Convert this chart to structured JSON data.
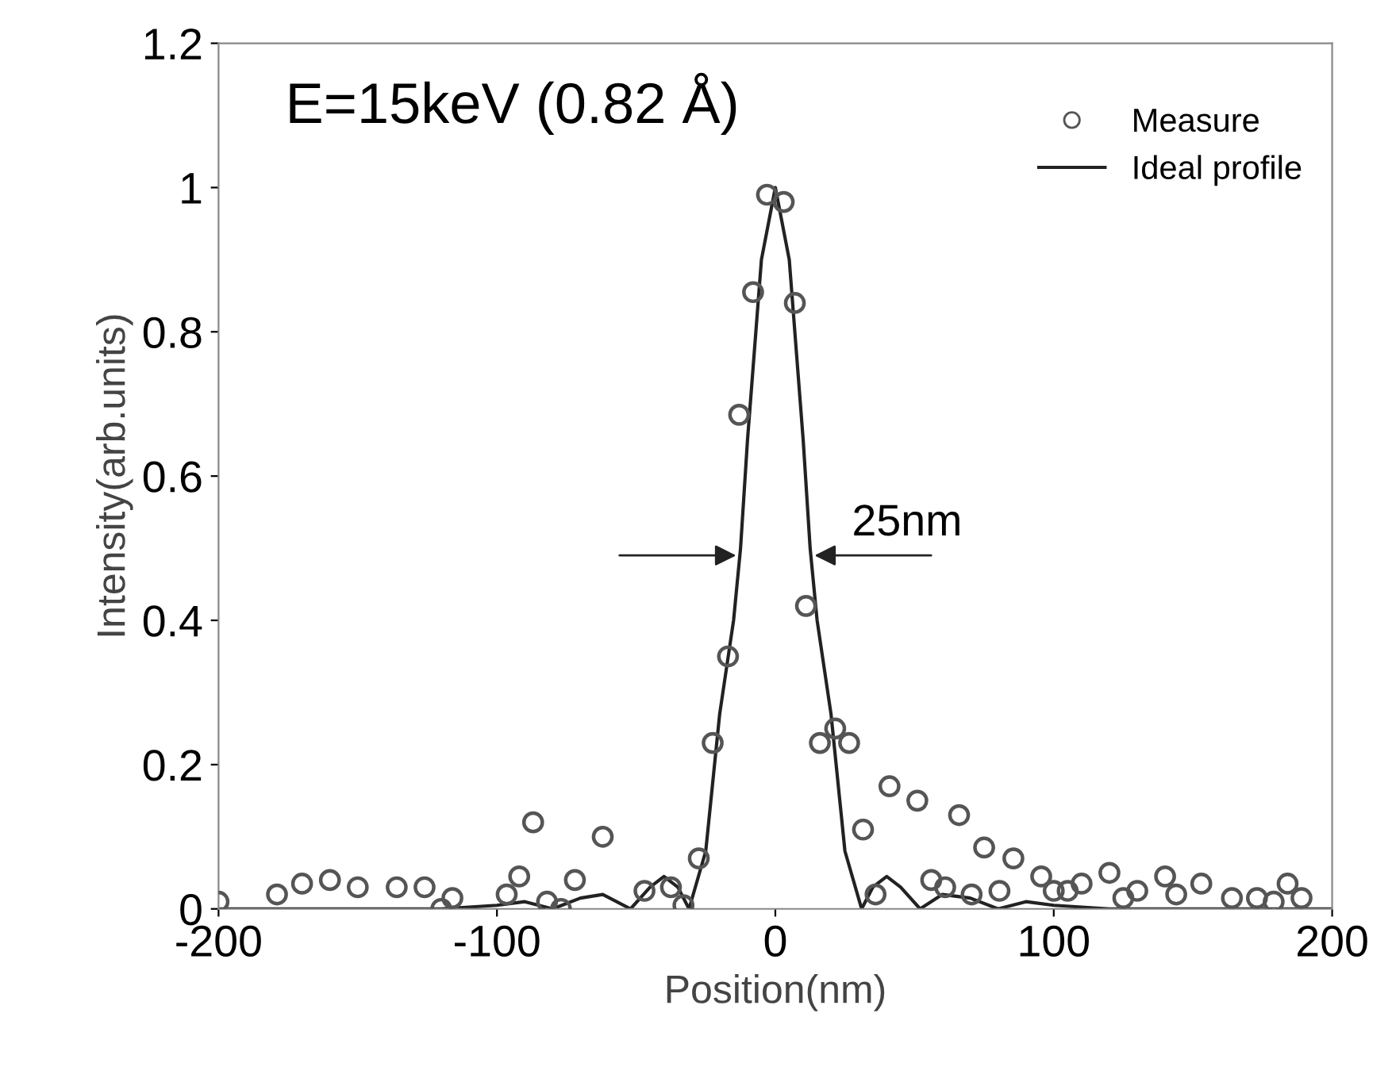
{
  "chart_data": {
    "type": "scatter",
    "xlabel": "Position(nm)",
    "ylabel": "Intensity(arb.units)",
    "xlim": [
      -200,
      200
    ],
    "xticks": [
      -200,
      -100,
      0,
      100,
      200
    ],
    "ylim": [
      0,
      1.2
    ],
    "yticks": [
      0,
      0.2,
      0.4,
      0.6,
      0.8,
      1,
      1.2
    ],
    "grid": false,
    "legend": "top right",
    "marker": "circle",
    "annotations": [
      "E=15keV (0.82 Å)",
      {
        "text": "25nm",
        "x": 12.5,
        "y": 0.49
      }
    ],
    "series": [
      {
        "name": "Measure",
        "color": "#555555",
        "x": [
          -200,
          -179,
          -170,
          -160,
          -150,
          -136,
          -126,
          -120,
          -116,
          -96.5,
          -92,
          -87,
          -82,
          -77,
          -72,
          -62,
          -47,
          -37.5,
          -33,
          -27.5,
          -22.5,
          -17,
          -13,
          -8,
          -3,
          3,
          7,
          11,
          16,
          21.5,
          26.5,
          31.5,
          36,
          41,
          51,
          56,
          61,
          66,
          70.5,
          75,
          80.5,
          85.5,
          95.5,
          100,
          105,
          110,
          120,
          125,
          130,
          140,
          144,
          153,
          164,
          173,
          179,
          184,
          189
        ],
        "values": [
          0.01,
          0.02,
          0.035,
          0.04,
          0.03,
          0.03,
          0.03,
          0.0,
          0.015,
          0.02,
          0.045,
          0.12,
          0.01,
          0.0,
          0.04,
          0.1,
          0.025,
          0.03,
          0.005,
          0.07,
          0.23,
          0.35,
          0.685,
          0.855,
          0.99,
          0.98,
          0.84,
          0.42,
          0.23,
          0.25,
          0.23,
          0.11,
          0.02,
          0.17,
          0.15,
          0.04,
          0.03,
          0.13,
          0.02,
          0.085,
          0.025,
          0.07,
          0.045,
          0.025,
          0.025,
          0.035,
          0.05,
          0.015,
          0.025,
          0.045,
          0.02,
          0.035,
          0.015,
          0.015,
          0.01,
          0.035,
          0.015
        ]
      },
      {
        "name": "Ideal profile",
        "type": "line",
        "color": "#222222",
        "marker": "none",
        "line_style": "solid",
        "x": [
          -200,
          -120,
          -100,
          -90,
          -80,
          -70,
          -62,
          -52,
          -45,
          -40,
          -35,
          -31,
          -25,
          -20,
          -15,
          -12.5,
          -10,
          -5,
          0,
          5,
          10,
          12.5,
          15,
          20,
          25,
          31,
          35,
          40,
          45,
          52,
          60,
          70,
          80,
          90,
          100,
          120,
          200
        ],
        "values": [
          0,
          0,
          0.005,
          0.01,
          0,
          0.015,
          0.02,
          0,
          0.03,
          0.045,
          0.03,
          0,
          0.08,
          0.27,
          0.4,
          0.5,
          0.65,
          0.9,
          1,
          0.9,
          0.65,
          0.5,
          0.4,
          0.27,
          0.08,
          0,
          0.03,
          0.045,
          0.03,
          0,
          0.02,
          0.015,
          0,
          0.01,
          0.005,
          0,
          0
        ]
      }
    ]
  }
}
